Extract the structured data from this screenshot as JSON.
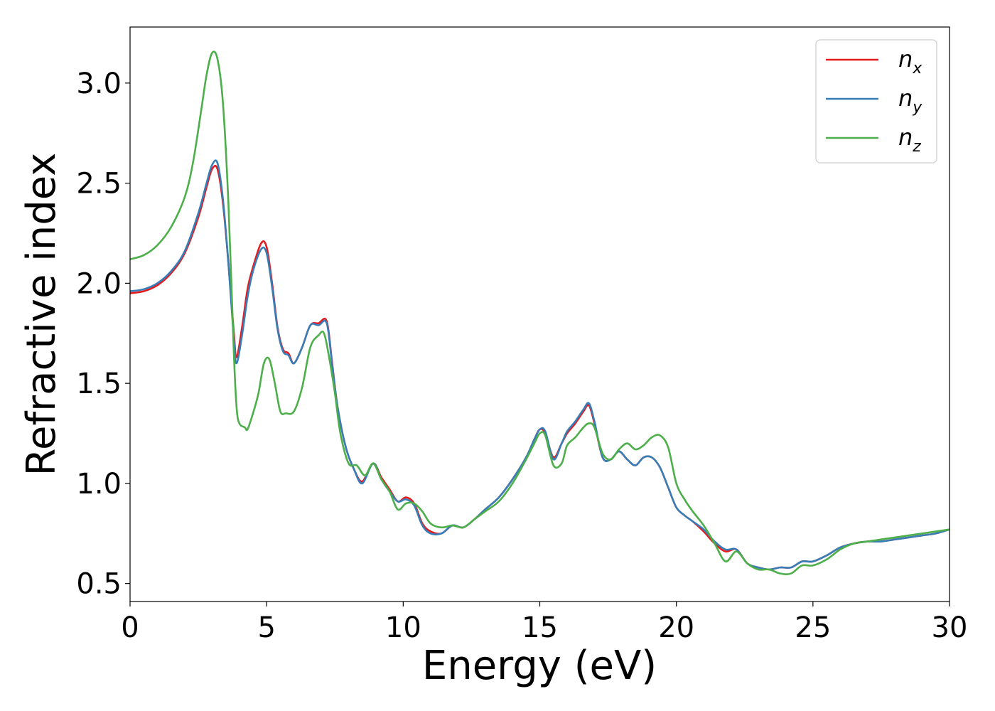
{
  "chart_data": {
    "type": "line",
    "title": "",
    "xlabel": "Energy (eV)",
    "ylabel": "Refractive index",
    "xlim": [
      0,
      30
    ],
    "ylim": [
      0.41,
      3.28
    ],
    "xticks": [
      0,
      5,
      10,
      15,
      20,
      25,
      30
    ],
    "xtick_labels": [
      "0",
      "5",
      "10",
      "15",
      "20",
      "25",
      "30"
    ],
    "yticks": [
      0.5,
      1.0,
      1.5,
      2.0,
      2.5,
      3.0
    ],
    "ytick_labels": [
      "0.5",
      "1.0",
      "1.5",
      "2.0",
      "2.5",
      "3.0"
    ],
    "grid": false,
    "legend_position": "top-right",
    "series": [
      {
        "name": "n_x",
        "label_main": "n",
        "label_sub": "x",
        "color": "#e41a1c",
        "x": [
          0,
          0.5,
          1,
          1.5,
          2,
          2.5,
          2.8,
          3.0,
          3.2,
          3.4,
          3.6,
          3.8,
          3.9,
          4.1,
          4.3,
          4.5,
          4.8,
          5.0,
          5.2,
          5.4,
          5.6,
          5.8,
          6.0,
          6.3,
          6.6,
          6.9,
          7.2,
          7.4,
          7.6,
          7.9,
          8.2,
          8.5,
          8.9,
          9.2,
          9.5,
          9.8,
          10.1,
          10.4,
          10.7,
          11.0,
          11.4,
          11.8,
          12.2,
          12.6,
          13.0,
          13.5,
          14.0,
          14.5,
          14.8,
          15.0,
          15.2,
          15.5,
          15.8,
          16.0,
          16.3,
          16.6,
          16.8,
          17.0,
          17.3,
          17.6,
          17.9,
          18.2,
          18.5,
          18.8,
          19.1,
          19.4,
          19.7,
          20.0,
          20.3,
          20.6,
          21.0,
          21.4,
          21.8,
          22.2,
          22.6,
          23.0,
          23.4,
          23.8,
          24.2,
          24.6,
          25.0,
          25.5,
          26.0,
          26.5,
          27.0,
          27.5,
          28.0,
          28.5,
          29.0,
          29.5,
          30.0
        ],
        "y": [
          1.95,
          1.96,
          1.99,
          2.05,
          2.15,
          2.33,
          2.48,
          2.57,
          2.57,
          2.4,
          2.1,
          1.75,
          1.63,
          1.78,
          1.97,
          2.08,
          2.2,
          2.18,
          2.0,
          1.78,
          1.67,
          1.65,
          1.6,
          1.68,
          1.79,
          1.8,
          1.81,
          1.6,
          1.38,
          1.18,
          1.07,
          1.01,
          1.1,
          1.03,
          0.97,
          0.91,
          0.93,
          0.9,
          0.8,
          0.76,
          0.75,
          0.79,
          0.78,
          0.82,
          0.87,
          0.93,
          1.02,
          1.13,
          1.22,
          1.27,
          1.25,
          1.13,
          1.2,
          1.25,
          1.3,
          1.36,
          1.39,
          1.3,
          1.13,
          1.12,
          1.16,
          1.12,
          1.09,
          1.13,
          1.13,
          1.08,
          0.98,
          0.88,
          0.84,
          0.81,
          0.76,
          0.7,
          0.66,
          0.67,
          0.6,
          0.58,
          0.57,
          0.58,
          0.58,
          0.61,
          0.61,
          0.64,
          0.68,
          0.7,
          0.71,
          0.71,
          0.72,
          0.73,
          0.74,
          0.75,
          0.77
        ]
      },
      {
        "name": "n_y",
        "label_main": "n",
        "label_sub": "y",
        "color": "#377eb8",
        "x": [
          0,
          0.5,
          1,
          1.5,
          2,
          2.5,
          2.8,
          3.0,
          3.2,
          3.4,
          3.6,
          3.8,
          3.9,
          4.1,
          4.3,
          4.5,
          4.8,
          5.0,
          5.2,
          5.4,
          5.6,
          5.8,
          6.0,
          6.3,
          6.6,
          6.9,
          7.2,
          7.4,
          7.6,
          7.9,
          8.2,
          8.5,
          8.9,
          9.2,
          9.5,
          9.8,
          10.1,
          10.4,
          10.7,
          11.0,
          11.4,
          11.8,
          12.2,
          12.6,
          13.0,
          13.5,
          14.0,
          14.5,
          14.8,
          15.0,
          15.2,
          15.5,
          15.8,
          16.0,
          16.3,
          16.6,
          16.8,
          17.0,
          17.3,
          17.6,
          17.9,
          18.2,
          18.5,
          18.8,
          19.1,
          19.4,
          19.7,
          20.0,
          20.3,
          20.6,
          21.0,
          21.4,
          21.8,
          22.2,
          22.6,
          23.0,
          23.4,
          23.8,
          24.2,
          24.6,
          25.0,
          25.5,
          26.0,
          26.5,
          27.0,
          27.5,
          28.0,
          28.5,
          29.0,
          29.5,
          30.0
        ],
        "y": [
          1.96,
          1.97,
          2.0,
          2.06,
          2.16,
          2.35,
          2.5,
          2.59,
          2.6,
          2.42,
          2.1,
          1.72,
          1.6,
          1.74,
          1.93,
          2.06,
          2.17,
          2.15,
          1.98,
          1.77,
          1.66,
          1.64,
          1.6,
          1.68,
          1.79,
          1.79,
          1.8,
          1.59,
          1.38,
          1.18,
          1.07,
          1.0,
          1.1,
          1.02,
          0.96,
          0.91,
          0.92,
          0.89,
          0.79,
          0.75,
          0.75,
          0.79,
          0.78,
          0.82,
          0.87,
          0.93,
          1.02,
          1.13,
          1.22,
          1.27,
          1.26,
          1.12,
          1.2,
          1.26,
          1.31,
          1.37,
          1.4,
          1.31,
          1.13,
          1.12,
          1.16,
          1.12,
          1.09,
          1.13,
          1.13,
          1.08,
          0.98,
          0.88,
          0.84,
          0.81,
          0.77,
          0.71,
          0.67,
          0.67,
          0.6,
          0.58,
          0.57,
          0.58,
          0.58,
          0.61,
          0.61,
          0.64,
          0.68,
          0.7,
          0.71,
          0.71,
          0.72,
          0.73,
          0.74,
          0.75,
          0.77
        ]
      },
      {
        "name": "n_z",
        "label_main": "n",
        "label_sub": "z",
        "color": "#4daf4a",
        "x": [
          0,
          0.5,
          1,
          1.5,
          2,
          2.3,
          2.6,
          2.8,
          3.0,
          3.2,
          3.4,
          3.6,
          3.8,
          3.9,
          4.0,
          4.2,
          4.3,
          4.5,
          4.7,
          4.9,
          5.1,
          5.3,
          5.5,
          5.7,
          6.0,
          6.3,
          6.6,
          6.9,
          7.1,
          7.3,
          7.5,
          7.7,
          8.0,
          8.3,
          8.6,
          8.9,
          9.2,
          9.5,
          9.8,
          10.1,
          10.4,
          10.7,
          11.0,
          11.4,
          11.8,
          12.2,
          12.6,
          13.0,
          13.5,
          14.0,
          14.5,
          14.8,
          15.0,
          15.2,
          15.5,
          15.8,
          16.0,
          16.3,
          16.6,
          16.8,
          17.0,
          17.3,
          17.6,
          17.9,
          18.2,
          18.5,
          18.8,
          19.1,
          19.4,
          19.7,
          20.0,
          20.3,
          20.6,
          21.0,
          21.4,
          21.8,
          22.2,
          22.6,
          23.0,
          23.4,
          23.8,
          24.2,
          24.6,
          25.0,
          25.5,
          26.0,
          26.5,
          27.0,
          27.5,
          28.0,
          28.5,
          29.0,
          29.5,
          30.0
        ],
        "y": [
          2.12,
          2.14,
          2.19,
          2.28,
          2.43,
          2.6,
          2.86,
          3.04,
          3.15,
          3.12,
          2.9,
          2.4,
          1.65,
          1.38,
          1.3,
          1.28,
          1.27,
          1.35,
          1.45,
          1.6,
          1.62,
          1.5,
          1.36,
          1.35,
          1.36,
          1.48,
          1.68,
          1.74,
          1.75,
          1.62,
          1.45,
          1.25,
          1.1,
          1.09,
          1.04,
          1.1,
          1.02,
          0.96,
          0.87,
          0.9,
          0.9,
          0.86,
          0.8,
          0.78,
          0.79,
          0.78,
          0.82,
          0.86,
          0.91,
          1.0,
          1.12,
          1.2,
          1.25,
          1.24,
          1.09,
          1.1,
          1.19,
          1.23,
          1.28,
          1.3,
          1.28,
          1.15,
          1.12,
          1.17,
          1.2,
          1.17,
          1.19,
          1.23,
          1.24,
          1.18,
          1.0,
          0.92,
          0.86,
          0.79,
          0.7,
          0.61,
          0.66,
          0.6,
          0.57,
          0.57,
          0.55,
          0.55,
          0.59,
          0.59,
          0.62,
          0.67,
          0.7,
          0.71,
          0.72,
          0.73,
          0.74,
          0.75,
          0.76,
          0.77
        ]
      }
    ]
  }
}
